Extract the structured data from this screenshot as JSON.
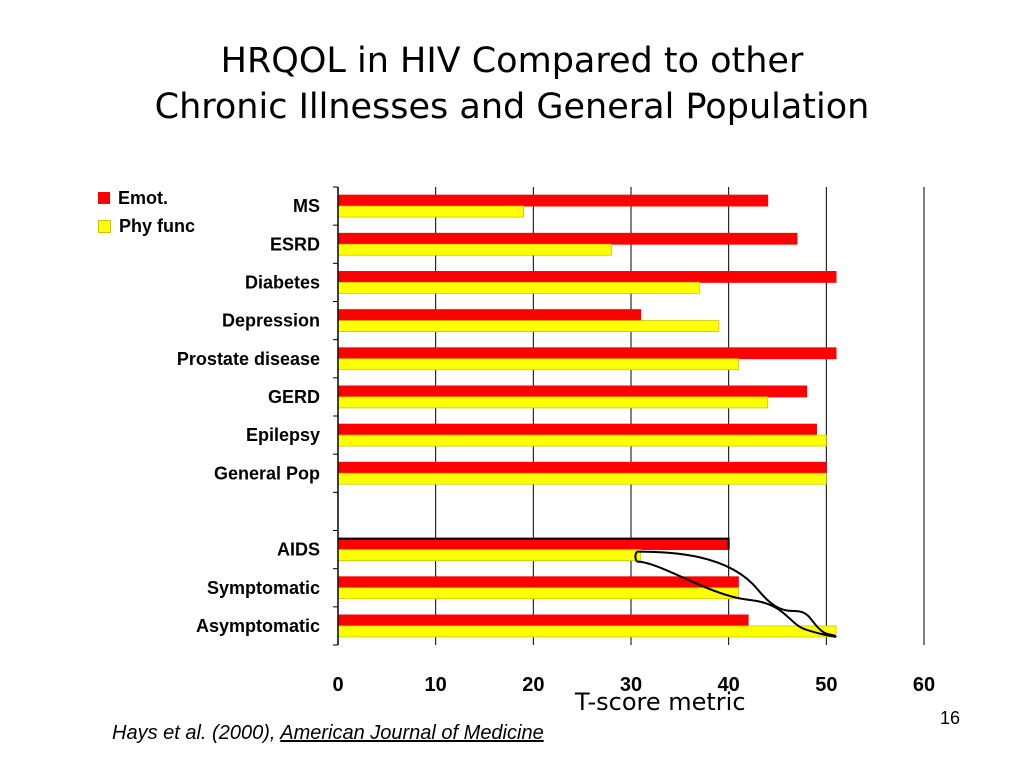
{
  "title": {
    "line1": "HRQOL in HIV Compared to other",
    "line2": "Chronic Illnesses and General Population"
  },
  "legend": {
    "emot": "Emot.",
    "phy": "Phy func"
  },
  "axis_caption": "T-score metric",
  "citation": {
    "authors": "Hays et al. (2000), ",
    "journal": "American Journal of Medicine"
  },
  "page_number": "16",
  "colors": {
    "emot": "#ff0000",
    "phy": "#ffff00",
    "grid": "#000000"
  },
  "chart_data": {
    "type": "bar",
    "orientation": "horizontal",
    "categories": [
      "MS",
      "ESRD",
      "Diabetes",
      "Depression",
      "Prostate disease",
      "GERD",
      "Epilepsy",
      "General Pop",
      "",
      "AIDS",
      "Symptomatic",
      "Asymptomatic"
    ],
    "series": [
      {
        "name": "Emot.",
        "values": [
          44,
          47,
          51,
          31,
          51,
          48,
          49,
          50,
          null,
          40,
          41,
          42
        ]
      },
      {
        "name": "Phy func",
        "values": [
          19,
          28,
          37,
          39,
          41,
          44,
          50,
          50,
          null,
          31,
          41,
          51
        ]
      }
    ],
    "xlim": [
      0,
      60
    ],
    "xticks": [
      "0",
      "10",
      "20",
      "30",
      "40",
      "50",
      "60"
    ],
    "xlabel": "T-score metric",
    "grid": "vertical",
    "legend_position": "top-left"
  }
}
